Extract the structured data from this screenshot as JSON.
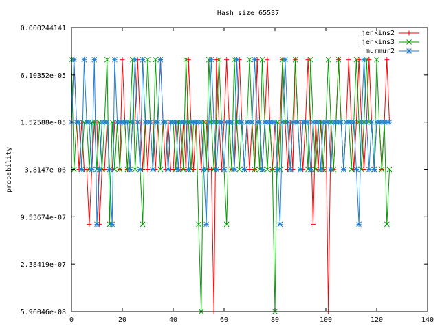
{
  "chart_data": {
    "type": "line",
    "title": "Hash size 65537",
    "xlabel": "",
    "ylabel": "probability",
    "xlim": [
      0,
      140
    ],
    "y_scale": "log2",
    "ylim": [
      5.96046e-08,
      0.000244141
    ],
    "x_ticks": [
      0,
      20,
      40,
      60,
      80,
      100,
      120,
      140
    ],
    "y_ticks": [
      {
        "value": 0.000244141,
        "label": "0.000244141"
      },
      {
        "value": 6.10352e-05,
        "label": "6.10352e-05"
      },
      {
        "value": 1.52588e-05,
        "label": "1.52588e-05"
      },
      {
        "value": 3.8147e-06,
        "label": "3.8147e-06"
      },
      {
        "value": 9.53674e-07,
        "label": "9.53674e-07"
      },
      {
        "value": 2.38419e-07,
        "label": "2.38419e-07"
      },
      {
        "value": 5.96046e-08,
        "label": "5.96046e-08"
      }
    ],
    "grid": false,
    "legend_position": "top-right",
    "series": [
      {
        "name": "jenkins2",
        "color": "#ff0000",
        "marker": "plus",
        "x": [
          0,
          1,
          2,
          3,
          4,
          5,
          6,
          7,
          8,
          9,
          10,
          11,
          12,
          13,
          14,
          15,
          16,
          17,
          18,
          19,
          20,
          21,
          22,
          23,
          24,
          25,
          26,
          27,
          28,
          29,
          30,
          31,
          32,
          33,
          34,
          35,
          36,
          37,
          38,
          39,
          40,
          41,
          42,
          43,
          44,
          45,
          46,
          47,
          48,
          49,
          50,
          51,
          52,
          53,
          54,
          55,
          56,
          57,
          58,
          59,
          60,
          61,
          62,
          63,
          64,
          65,
          66,
          67,
          68,
          69,
          70,
          71,
          72,
          73,
          74,
          75,
          76,
          77,
          78,
          79,
          80,
          81,
          82,
          83,
          84,
          85,
          86,
          87,
          88,
          89,
          90,
          91,
          92,
          93,
          94,
          95,
          96,
          97,
          98,
          99,
          100,
          101,
          102,
          103,
          104,
          105,
          106,
          107,
          108,
          109,
          110,
          111,
          112,
          113,
          114,
          115,
          116,
          117,
          118,
          119,
          120,
          121,
          122,
          123,
          124,
          125
        ],
        "values": [
          1.52588e-05,
          9.53674e-05,
          1.52588e-05,
          3.8147e-06,
          1.52588e-05,
          3.8147e-06,
          3.8147e-06,
          7.62939e-07,
          3.8147e-06,
          1.52588e-05,
          1.52588e-05,
          7.62939e-07,
          3.8147e-06,
          3.8147e-06,
          1.52588e-05,
          3.8147e-06,
          3.8147e-06,
          1.52588e-05,
          1.52588e-05,
          3.8147e-06,
          9.53674e-05,
          1.52588e-05,
          3.8147e-06,
          3.8147e-06,
          1.52588e-05,
          1.52588e-05,
          9.53674e-05,
          1.52588e-05,
          3.8147e-06,
          1.52588e-05,
          3.8147e-06,
          1.52588e-05,
          1.52588e-05,
          3.8147e-06,
          1.52588e-05,
          9.53674e-05,
          1.52588e-05,
          3.8147e-06,
          1.52588e-05,
          3.8147e-06,
          3.8147e-06,
          1.52588e-05,
          1.52588e-05,
          3.8147e-06,
          1.52588e-05,
          3.8147e-06,
          9.53674e-05,
          1.52588e-05,
          3.8147e-06,
          1.52588e-05,
          1.52588e-05,
          3.8147e-06,
          1.52588e-05,
          1.52588e-05,
          3.8147e-06,
          3.8147e-06,
          5.96046e-08,
          9.53674e-05,
          1.52588e-05,
          3.8147e-06,
          1.52588e-05,
          9.53674e-05,
          1.52588e-05,
          3.8147e-06,
          3.8147e-06,
          1.52588e-05,
          9.53674e-05,
          1.52588e-05,
          3.8147e-06,
          1.52588e-05,
          3.8147e-06,
          1.52588e-05,
          3.8147e-06,
          9.53674e-05,
          1.52588e-05,
          3.8147e-06,
          1.52588e-05,
          9.53674e-05,
          1.52588e-05,
          3.8147e-06,
          1.52588e-05,
          3.8147e-06,
          1.52588e-05,
          9.53674e-05,
          1.52588e-05,
          3.8147e-06,
          1.52588e-05,
          3.8147e-06,
          9.53674e-05,
          1.52588e-05,
          1.52588e-05,
          3.8147e-06,
          1.52588e-05,
          9.53674e-05,
          1.52588e-05,
          7.62939e-07,
          1.52588e-05,
          3.8147e-06,
          1.52588e-05,
          3.8147e-06,
          1.52588e-05,
          5.96046e-08,
          1.52588e-05,
          3.8147e-06,
          1.52588e-05,
          9.53674e-05,
          1.52588e-05,
          3.8147e-06,
          1.52588e-05,
          9.53674e-05,
          1.52588e-05,
          3.8147e-06,
          1.52588e-05,
          9.53674e-05,
          1.52588e-05,
          3.8147e-06,
          1.52588e-05,
          9.53674e-05,
          1.52588e-05,
          3.8147e-06,
          1.52588e-05,
          1.52588e-05,
          3.8147e-06,
          1.52588e-05,
          9.53674e-05,
          1.52588e-05
        ]
      },
      {
        "name": "jenkins3",
        "color": "#00a000",
        "marker": "cross",
        "x": [
          0,
          1,
          2,
          3,
          4,
          5,
          6,
          7,
          8,
          9,
          10,
          11,
          12,
          13,
          14,
          15,
          16,
          17,
          18,
          19,
          20,
          21,
          22,
          23,
          24,
          25,
          26,
          27,
          28,
          29,
          30,
          31,
          32,
          33,
          34,
          35,
          36,
          37,
          38,
          39,
          40,
          41,
          42,
          43,
          44,
          45,
          46,
          47,
          48,
          49,
          50,
          51,
          52,
          53,
          54,
          55,
          56,
          57,
          58,
          59,
          60,
          61,
          62,
          63,
          64,
          65,
          66,
          67,
          68,
          69,
          70,
          71,
          72,
          73,
          74,
          75,
          76,
          77,
          78,
          79,
          80,
          81,
          82,
          83,
          84,
          85,
          86,
          87,
          88,
          89,
          90,
          91,
          92,
          93,
          94,
          95,
          96,
          97,
          98,
          99,
          100,
          101,
          102,
          103,
          104,
          105,
          106,
          107,
          108,
          109,
          110,
          111,
          112,
          113,
          114,
          115,
          116,
          117,
          118,
          119,
          120,
          121,
          122,
          123,
          124,
          125
        ],
        "values": [
          9.53674e-05,
          3.8147e-06,
          1.52588e-05,
          1.52588e-05,
          3.8147e-06,
          1.52588e-05,
          1.52588e-05,
          3.8147e-06,
          1.52588e-05,
          1.52588e-05,
          3.8147e-06,
          1.52588e-05,
          3.8147e-06,
          1.52588e-05,
          9.53674e-05,
          7.62939e-07,
          1.52588e-05,
          3.8147e-06,
          1.52588e-05,
          3.8147e-06,
          1.52588e-05,
          1.52588e-05,
          3.8147e-06,
          1.52588e-05,
          9.53674e-05,
          3.8147e-06,
          1.52588e-05,
          3.8147e-06,
          7.62939e-07,
          1.52588e-05,
          9.53674e-05,
          1.52588e-05,
          3.8147e-06,
          9.53674e-05,
          1.52588e-05,
          3.8147e-06,
          1.52588e-05,
          1.52588e-05,
          3.8147e-06,
          1.52588e-05,
          1.52588e-05,
          3.8147e-06,
          1.52588e-05,
          1.52588e-05,
          3.8147e-06,
          9.53674e-05,
          1.52588e-05,
          3.8147e-06,
          1.52588e-05,
          1.52588e-05,
          7.62939e-07,
          5.96046e-08,
          1.52588e-05,
          3.8147e-06,
          9.53674e-05,
          1.52588e-05,
          3.8147e-06,
          1.52588e-05,
          9.53674e-05,
          1.52588e-05,
          3.8147e-06,
          7.62939e-07,
          1.52588e-05,
          3.8147e-06,
          9.53674e-05,
          1.52588e-05,
          3.8147e-06,
          1.52588e-05,
          3.8147e-06,
          1.52588e-05,
          9.53674e-05,
          1.52588e-05,
          3.8147e-06,
          1.52588e-05,
          3.8147e-06,
          9.53674e-05,
          1.52588e-05,
          3.8147e-06,
          1.52588e-05,
          3.8147e-06,
          5.96046e-08,
          1.52588e-05,
          3.8147e-06,
          9.53674e-05,
          1.52588e-05,
          1.52588e-05,
          3.8147e-06,
          1.52588e-05,
          9.53674e-05,
          1.52588e-05,
          3.8147e-06,
          1.52588e-05,
          1.52588e-05,
          3.8147e-06,
          9.53674e-05,
          1.52588e-05,
          3.8147e-06,
          1.52588e-05,
          1.52588e-05,
          3.8147e-06,
          1.52588e-05,
          9.53674e-05,
          1.52588e-05,
          3.8147e-06,
          1.52588e-05,
          9.53674e-05,
          1.52588e-05,
          3.8147e-06,
          1.52588e-05,
          1.52588e-05,
          3.8147e-06,
          1.52588e-05,
          9.53674e-05,
          1.52588e-05,
          3.8147e-06,
          1.52588e-05,
          9.53674e-05,
          1.52588e-05,
          1.52588e-05,
          3.8147e-06,
          9.53674e-05,
          1.52588e-05,
          3.8147e-06,
          1.52588e-05,
          7.62939e-07,
          3.8147e-06
        ]
      },
      {
        "name": "murmur2",
        "color": "#1c7fd4",
        "marker": "star",
        "x": [
          0,
          1,
          2,
          3,
          4,
          5,
          6,
          7,
          8,
          9,
          10,
          11,
          12,
          13,
          14,
          15,
          16,
          17,
          18,
          19,
          20,
          21,
          22,
          23,
          24,
          25,
          26,
          27,
          28,
          29,
          30,
          31,
          32,
          33,
          34,
          35,
          36,
          37,
          38,
          39,
          40,
          41,
          42,
          43,
          44,
          45,
          46,
          47,
          48,
          49,
          50,
          51,
          52,
          53,
          54,
          55,
          56,
          57,
          58,
          59,
          60,
          61,
          62,
          63,
          64,
          65,
          66,
          67,
          68,
          69,
          70,
          71,
          72,
          73,
          74,
          75,
          76,
          77,
          78,
          79,
          80,
          81,
          82,
          83,
          84,
          85,
          86,
          87,
          88,
          89,
          90,
          91,
          92,
          93,
          94,
          95,
          96,
          97,
          98,
          99,
          100,
          101,
          102,
          103,
          104,
          105,
          106,
          107,
          108,
          109,
          110,
          111,
          112,
          113,
          114,
          115,
          116,
          117,
          118,
          119,
          120,
          121,
          122,
          123,
          124,
          125
        ],
        "values": [
          1.52588e-05,
          9.53674e-05,
          1.52588e-05,
          1.52588e-05,
          3.8147e-06,
          9.53674e-05,
          1.52588e-05,
          1.52588e-05,
          3.8147e-06,
          9.53674e-05,
          7.62939e-07,
          3.8147e-06,
          1.52588e-05,
          1.52588e-05,
          1.52588e-05,
          3.8147e-06,
          7.62939e-07,
          9.53674e-05,
          1.52588e-05,
          1.52588e-05,
          1.52588e-05,
          1.52588e-05,
          1.52588e-05,
          3.8147e-06,
          1.52588e-05,
          9.53674e-05,
          1.52588e-05,
          3.8147e-06,
          9.53674e-05,
          1.52588e-05,
          1.52588e-05,
          1.52588e-05,
          3.8147e-06,
          1.52588e-05,
          1.52588e-05,
          9.53674e-05,
          1.52588e-05,
          1.52588e-05,
          3.8147e-06,
          1.52588e-05,
          1.52588e-05,
          1.52588e-05,
          3.8147e-06,
          1.52588e-05,
          1.52588e-05,
          1.52588e-05,
          3.8147e-06,
          1.52588e-05,
          1.52588e-05,
          1.52588e-05,
          1.52588e-05,
          1.52588e-05,
          3.8147e-06,
          7.62939e-07,
          1.52588e-05,
          9.53674e-05,
          1.52588e-05,
          3.8147e-06,
          1.52588e-05,
          1.52588e-05,
          3.8147e-06,
          1.52588e-05,
          1.52588e-05,
          1.52588e-05,
          3.8147e-06,
          9.53674e-05,
          1.52588e-05,
          1.52588e-05,
          3.8147e-06,
          1.52588e-05,
          1.52588e-05,
          1.52588e-05,
          9.53674e-05,
          1.52588e-05,
          1.52588e-05,
          3.8147e-06,
          1.52588e-05,
          1.52588e-05,
          1.52588e-05,
          1.52588e-05,
          1.52588e-05,
          3.8147e-06,
          7.62939e-07,
          1.52588e-05,
          9.53674e-05,
          1.52588e-05,
          3.8147e-06,
          1.52588e-05,
          1.52588e-05,
          1.52588e-05,
          3.8147e-06,
          1.52588e-05,
          1.52588e-05,
          1.52588e-05,
          3.8147e-06,
          1.52588e-05,
          1.52588e-05,
          1.52588e-05,
          3.8147e-06,
          1.52588e-05,
          1.52588e-05,
          1.52588e-05,
          3.8147e-06,
          1.52588e-05,
          1.52588e-05,
          1.52588e-05,
          1.52588e-05,
          3.8147e-06,
          1.52588e-05,
          1.52588e-05,
          1.52588e-05,
          1.52588e-05,
          3.8147e-06,
          7.62939e-07,
          1.52588e-05,
          9.53674e-05,
          1.52588e-05,
          3.8147e-06,
          1.52588e-05,
          3.8147e-06,
          1.52588e-05,
          1.52588e-05,
          1.52588e-05,
          1.52588e-05,
          1.52588e-05,
          1.52588e-05
        ]
      }
    ]
  }
}
